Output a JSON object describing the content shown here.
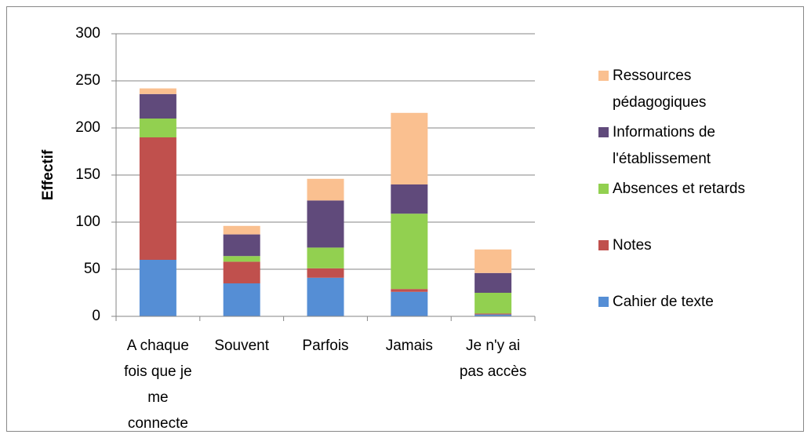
{
  "chart_data": {
    "type": "bar",
    "stacked": true,
    "y_label": "Effectif",
    "categories": [
      "A chaque fois que je me connecte",
      "Souvent",
      "Parfois",
      "Jamais",
      "Je n'y ai pas accès"
    ],
    "series": [
      {
        "name": "Cahier de texte",
        "color": "#558ed5",
        "values": [
          60,
          35,
          41,
          26,
          2
        ]
      },
      {
        "name": "Notes",
        "color": "#c0504d",
        "values": [
          130,
          23,
          10,
          3,
          1
        ]
      },
      {
        "name": "Absences et retards",
        "color": "#92d050",
        "values": [
          20,
          6,
          22,
          80,
          22
        ]
      },
      {
        "name": "Informations de l'établissement",
        "color": "#604a7b",
        "values": [
          26,
          23,
          50,
          31,
          21
        ]
      },
      {
        "name": "Ressources pédagogiques",
        "color": "#fac090",
        "values": [
          6,
          9,
          23,
          76,
          25
        ]
      }
    ],
    "ylim": [
      0,
      300
    ],
    "yticks": [
      0,
      50,
      100,
      150,
      200,
      250,
      300
    ],
    "grid": true,
    "legend": "right"
  }
}
